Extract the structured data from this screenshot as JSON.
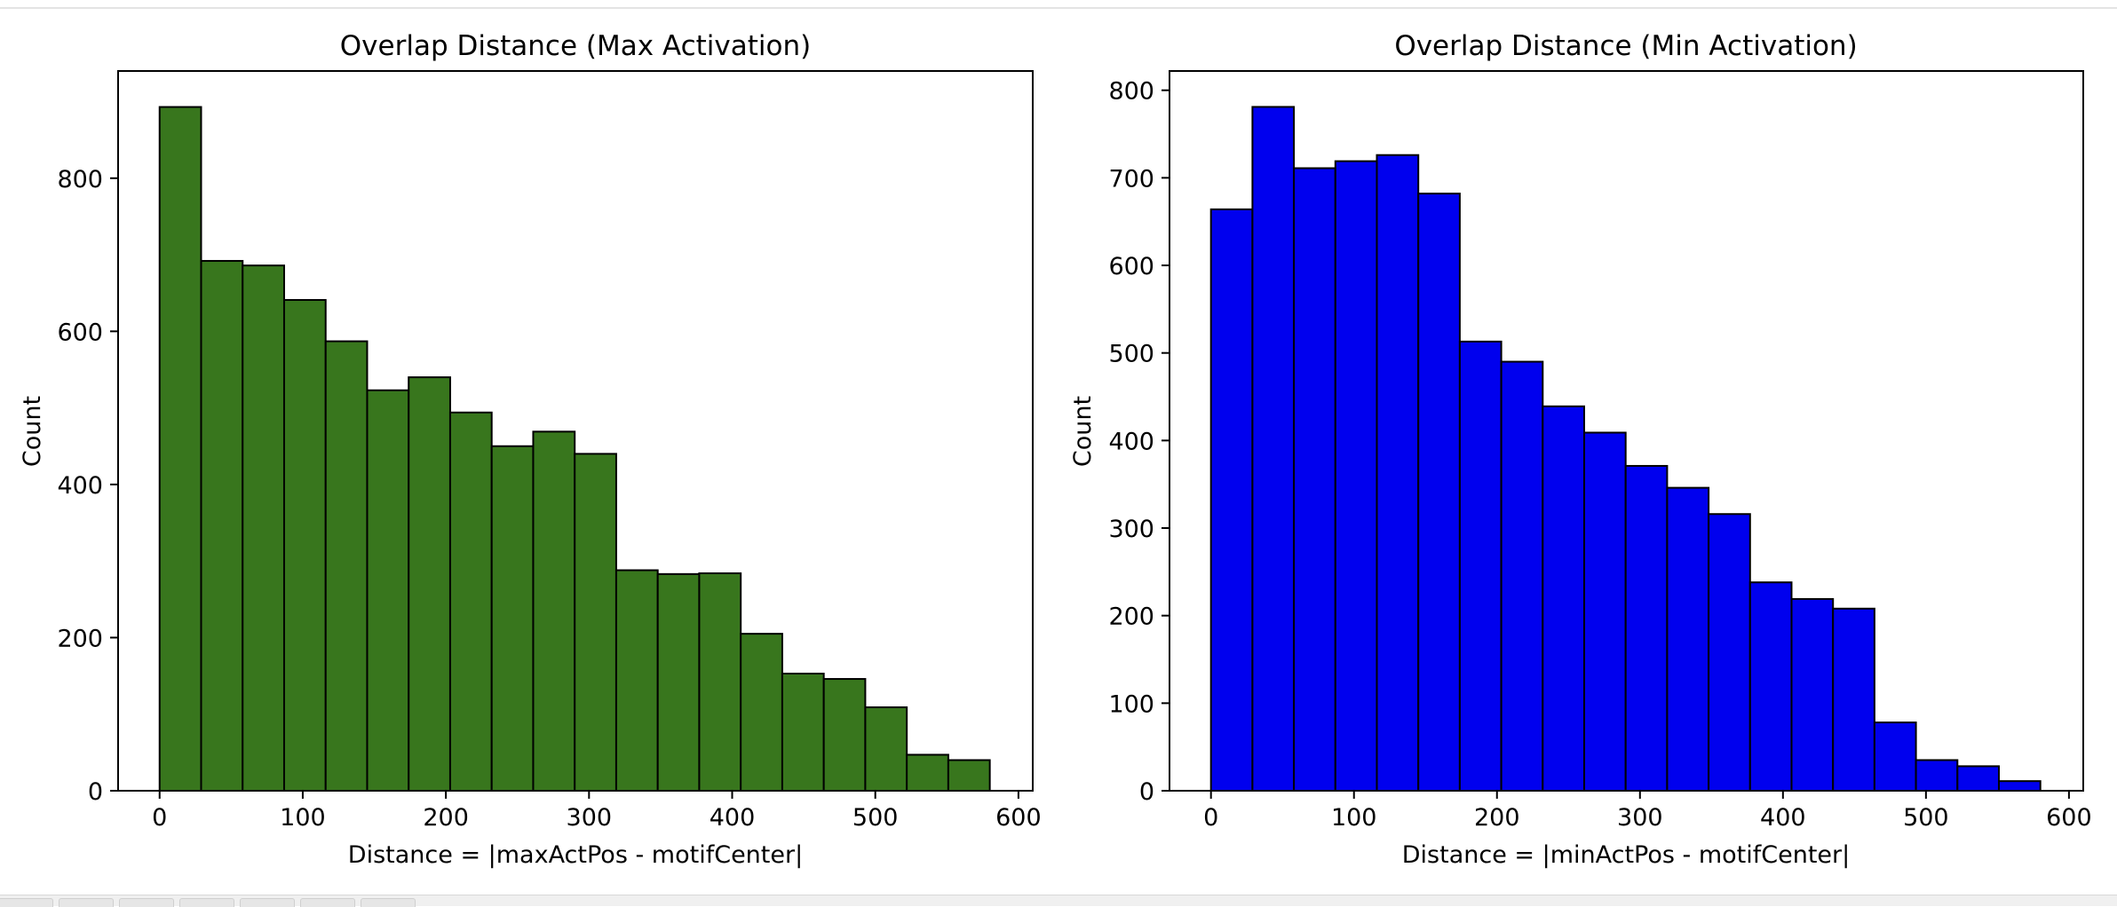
{
  "chart_data": [
    {
      "type": "bar",
      "title": "Overlap Distance (Max Activation)",
      "xlabel": "Distance = |maxActPos - motifCenter|",
      "ylabel": "Count",
      "color": "#38761d",
      "edge_color": "#000000",
      "bin_edges": [
        0,
        29,
        58,
        87,
        116,
        145,
        174,
        203,
        232,
        261,
        290,
        319,
        348,
        377,
        406,
        435,
        464,
        493,
        522,
        551,
        580
      ],
      "values": [
        893,
        692,
        686,
        641,
        587,
        523,
        540,
        494,
        450,
        469,
        440,
        288,
        283,
        284,
        205,
        153,
        146,
        109,
        47,
        40
      ],
      "xlim": [
        -29,
        610
      ],
      "ylim": [
        0,
        940
      ],
      "xticks": [
        0,
        100,
        200,
        300,
        400,
        500,
        600
      ],
      "yticks": [
        0,
        200,
        400,
        600,
        800
      ],
      "grid": false
    },
    {
      "type": "bar",
      "title": "Overlap Distance (Min Activation)",
      "xlabel": "Distance = |minActPos - motifCenter|",
      "ylabel": "Count",
      "color": "#0000ee",
      "edge_color": "#000000",
      "bin_edges": [
        0,
        29,
        58,
        87,
        116,
        145,
        174,
        203,
        232,
        261,
        290,
        319,
        348,
        377,
        406,
        435,
        464,
        493,
        522,
        551,
        580
      ],
      "values": [
        664,
        781,
        711,
        719,
        726,
        682,
        513,
        490,
        439,
        409,
        371,
        346,
        316,
        238,
        219,
        208,
        78,
        35,
        28,
        11
      ],
      "xlim": [
        -29,
        610
      ],
      "ylim": [
        0,
        822
      ],
      "xticks": [
        0,
        100,
        200,
        300,
        400,
        500,
        600
      ],
      "yticks": [
        0,
        100,
        200,
        300,
        400,
        500,
        600,
        700,
        800
      ],
      "grid": false
    }
  ]
}
